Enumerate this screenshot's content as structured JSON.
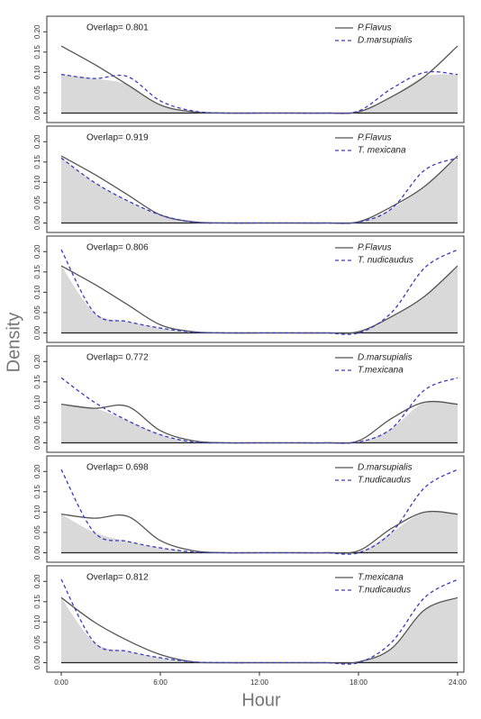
{
  "xlabel": "Hour",
  "ylabel": "Density",
  "chart_data": [
    {
      "type": "line",
      "annotation": "Overlap= 0.801",
      "x": [
        0,
        2,
        4,
        6,
        8,
        10,
        12,
        14,
        16,
        18,
        20,
        22,
        24
      ],
      "series": [
        {
          "name": "P.Flavus",
          "color": "#555555",
          "style": "solid",
          "values": [
            0.165,
            0.12,
            0.07,
            0.02,
            0.003,
            0,
            0,
            0,
            0,
            0.003,
            0.04,
            0.09,
            0.165
          ]
        },
        {
          "name": "D.marsupialis",
          "color": "#3c3cbe",
          "style": "dashed",
          "values": [
            0.095,
            0.085,
            0.09,
            0.03,
            0.005,
            0,
            0,
            0,
            0,
            0.005,
            0.06,
            0.1,
            0.095
          ]
        }
      ],
      "xlim": [
        0,
        24
      ],
      "ylim": [
        -0.01,
        0.225
      ],
      "yticks": [
        {
          "value": 0,
          "label": "0.00"
        },
        {
          "value": 0.05,
          "label": "0.05"
        },
        {
          "value": 0.1,
          "label": "0.10"
        },
        {
          "value": 0.15,
          "label": "0.15"
        },
        {
          "value": 0.2,
          "label": "0.20"
        }
      ]
    },
    {
      "type": "line",
      "annotation": "Overlap= 0.919",
      "x": [
        0,
        2,
        4,
        6,
        8,
        10,
        12,
        14,
        16,
        18,
        20,
        22,
        24
      ],
      "series": [
        {
          "name": "P.Flavus",
          "color": "#555555",
          "style": "solid",
          "values": [
            0.165,
            0.12,
            0.07,
            0.02,
            0.003,
            0,
            0,
            0,
            0,
            0.003,
            0.04,
            0.09,
            0.165
          ]
        },
        {
          "name": "T. mexicana",
          "color": "#3c3cbe",
          "style": "dashed",
          "values": [
            0.16,
            0.1,
            0.055,
            0.02,
            0.002,
            0,
            0,
            0,
            0,
            0.002,
            0.035,
            0.13,
            0.16
          ]
        }
      ],
      "xlim": [
        0,
        24
      ],
      "ylim": [
        -0.01,
        0.225
      ],
      "yticks": [
        {
          "value": 0,
          "label": "0.00"
        },
        {
          "value": 0.05,
          "label": "0.05"
        },
        {
          "value": 0.1,
          "label": "0.10"
        },
        {
          "value": 0.15,
          "label": "0.15"
        },
        {
          "value": 0.2,
          "label": "0.20"
        }
      ]
    },
    {
      "type": "line",
      "annotation": "Overlap= 0.806",
      "x": [
        0,
        2,
        4,
        6,
        8,
        10,
        12,
        14,
        16,
        18,
        20,
        22,
        24
      ],
      "series": [
        {
          "name": "P.Flavus",
          "color": "#555555",
          "style": "solid",
          "values": [
            0.165,
            0.12,
            0.07,
            0.02,
            0.003,
            0,
            0,
            0,
            0,
            0.003,
            0.04,
            0.09,
            0.165
          ]
        },
        {
          "name": "T. nudicaudus",
          "color": "#3c3cbe",
          "style": "dashed",
          "values": [
            0.205,
            0.05,
            0.028,
            0.012,
            0.002,
            0,
            0,
            0,
            0,
            0,
            0.05,
            0.16,
            0.205
          ]
        }
      ],
      "xlim": [
        0,
        24
      ],
      "ylim": [
        -0.01,
        0.225
      ],
      "yticks": [
        {
          "value": 0,
          "label": "0.00"
        },
        {
          "value": 0.05,
          "label": "0.05"
        },
        {
          "value": 0.1,
          "label": "0.10"
        },
        {
          "value": 0.15,
          "label": "0.15"
        },
        {
          "value": 0.2,
          "label": "0.20"
        }
      ]
    },
    {
      "type": "line",
      "annotation": "Overlap= 0.772",
      "x": [
        0,
        2,
        4,
        6,
        8,
        10,
        12,
        14,
        16,
        18,
        20,
        22,
        24
      ],
      "series": [
        {
          "name": "D.marsupialis",
          "color": "#555555",
          "style": "solid",
          "values": [
            0.095,
            0.085,
            0.09,
            0.03,
            0.005,
            0,
            0,
            0,
            0,
            0.005,
            0.06,
            0.1,
            0.095
          ]
        },
        {
          "name": "T.mexicana",
          "color": "#3c3cbe",
          "style": "dashed",
          "values": [
            0.16,
            0.1,
            0.055,
            0.02,
            0.002,
            0,
            0,
            0,
            0,
            0.002,
            0.035,
            0.13,
            0.16
          ]
        }
      ],
      "xlim": [
        0,
        24
      ],
      "ylim": [
        -0.01,
        0.225
      ],
      "yticks": [
        {
          "value": 0,
          "label": "0.00"
        },
        {
          "value": 0.05,
          "label": "0.05"
        },
        {
          "value": 0.1,
          "label": "0.10"
        },
        {
          "value": 0.15,
          "label": "0.15"
        },
        {
          "value": 0.2,
          "label": "0.20"
        }
      ]
    },
    {
      "type": "line",
      "annotation": "Overlap= 0.698",
      "x": [
        0,
        2,
        4,
        6,
        8,
        10,
        12,
        14,
        16,
        18,
        20,
        22,
        24
      ],
      "series": [
        {
          "name": "D.marsupialis",
          "color": "#555555",
          "style": "solid",
          "values": [
            0.095,
            0.085,
            0.09,
            0.03,
            0.005,
            0,
            0,
            0,
            0,
            0.005,
            0.06,
            0.1,
            0.095
          ]
        },
        {
          "name": "T.nudicaudus",
          "color": "#3c3cbe",
          "style": "dashed",
          "values": [
            0.205,
            0.05,
            0.028,
            0.012,
            0.002,
            0,
            0,
            0,
            0,
            0,
            0.05,
            0.16,
            0.205
          ]
        }
      ],
      "xlim": [
        0,
        24
      ],
      "ylim": [
        -0.01,
        0.225
      ],
      "yticks": [
        {
          "value": 0,
          "label": "0.00"
        },
        {
          "value": 0.05,
          "label": "0.05"
        },
        {
          "value": 0.1,
          "label": "0.10"
        },
        {
          "value": 0.15,
          "label": "0.15"
        },
        {
          "value": 0.2,
          "label": "0.20"
        }
      ]
    },
    {
      "type": "line",
      "annotation": "Overlap= 0.812",
      "x": [
        0,
        2,
        4,
        6,
        8,
        10,
        12,
        14,
        16,
        18,
        20,
        22,
        24
      ],
      "series": [
        {
          "name": "T.mexicana",
          "color": "#555555",
          "style": "solid",
          "values": [
            0.16,
            0.1,
            0.055,
            0.02,
            0.002,
            0,
            0,
            0,
            0,
            0.002,
            0.035,
            0.13,
            0.16
          ]
        },
        {
          "name": "T.nudicaudus",
          "color": "#3c3cbe",
          "style": "dashed",
          "values": [
            0.205,
            0.05,
            0.028,
            0.012,
            0.002,
            0,
            0,
            0,
            0,
            0,
            0.05,
            0.16,
            0.205
          ]
        }
      ],
      "xlim": [
        0,
        24
      ],
      "ylim": [
        -0.01,
        0.225
      ],
      "yticks": [
        {
          "value": 0,
          "label": "0.00"
        },
        {
          "value": 0.05,
          "label": "0.05"
        },
        {
          "value": 0.1,
          "label": "0.10"
        },
        {
          "value": 0.15,
          "label": "0.15"
        },
        {
          "value": 0.2,
          "label": "0.20"
        }
      ],
      "xticks": [
        {
          "value": 0,
          "label": "0:00"
        },
        {
          "value": 6,
          "label": "6:00"
        },
        {
          "value": 12,
          "label": "12:00"
        },
        {
          "value": 18,
          "label": "18:00"
        },
        {
          "value": 24,
          "label": "24:00"
        }
      ]
    }
  ]
}
